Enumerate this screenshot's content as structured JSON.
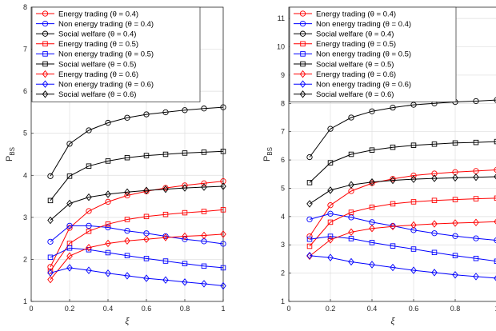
{
  "chart_data": [
    {
      "type": "line",
      "xlabel": "ξ",
      "ylabel": "P",
      "ylabel_sub": "BS",
      "xlim": [
        0,
        1
      ],
      "ylim": [
        1,
        8
      ],
      "xticks": [
        "0",
        "0.2",
        "0.4",
        "0.6",
        "0.8",
        "1"
      ],
      "yticks": [
        "1",
        "2",
        "3",
        "4",
        "5",
        "6",
        "7",
        "8"
      ],
      "grid": true,
      "legend_position": "top-left",
      "x": [
        0.1,
        0.2,
        0.3,
        0.4,
        0.5,
        0.6,
        0.7,
        0.8,
        0.9,
        1.0
      ],
      "series": [
        {
          "name": "Energy trading (θ = 0.4)",
          "color": "#ff0000",
          "marker": "circle",
          "values": [
            1.82,
            2.75,
            3.15,
            3.37,
            3.52,
            3.62,
            3.7,
            3.76,
            3.81,
            3.86
          ]
        },
        {
          "name": "Non energy trading (θ = 0.4)",
          "color": "#0000ff",
          "marker": "circle",
          "values": [
            2.42,
            2.8,
            2.8,
            2.76,
            2.68,
            2.62,
            2.55,
            2.48,
            2.43,
            2.37
          ]
        },
        {
          "name": "Social welfare (θ = 0.4)",
          "color": "#000000",
          "marker": "circle",
          "values": [
            3.98,
            4.75,
            5.07,
            5.25,
            5.37,
            5.45,
            5.5,
            5.55,
            5.59,
            5.62
          ]
        },
        {
          "name": "Energy trading (θ = 0.5)",
          "color": "#ff0000",
          "marker": "square",
          "values": [
            1.72,
            2.38,
            2.67,
            2.84,
            2.95,
            3.02,
            3.07,
            3.11,
            3.14,
            3.18
          ]
        },
        {
          "name": "Non energy trading (θ = 0.5)",
          "color": "#0000ff",
          "marker": "square",
          "values": [
            2.05,
            2.27,
            2.23,
            2.16,
            2.09,
            2.02,
            1.96,
            1.9,
            1.84,
            1.8
          ]
        },
        {
          "name": "Social welfare (θ = 0.5)",
          "color": "#000000",
          "marker": "square",
          "values": [
            3.4,
            3.98,
            4.22,
            4.34,
            4.42,
            4.47,
            4.5,
            4.53,
            4.55,
            4.57
          ]
        },
        {
          "name": "Energy trading (θ = 0.6)",
          "color": "#ff0000",
          "marker": "diamond",
          "values": [
            1.52,
            2.08,
            2.28,
            2.38,
            2.44,
            2.48,
            2.52,
            2.55,
            2.57,
            2.6
          ]
        },
        {
          "name": "Non energy trading (θ = 0.6)",
          "color": "#0000ff",
          "marker": "diamond",
          "values": [
            1.68,
            1.8,
            1.74,
            1.67,
            1.61,
            1.55,
            1.51,
            1.46,
            1.42,
            1.37
          ]
        },
        {
          "name": "Social welfare (θ = 0.6)",
          "color": "#000000",
          "marker": "diamond",
          "values": [
            2.93,
            3.33,
            3.48,
            3.55,
            3.6,
            3.64,
            3.67,
            3.7,
            3.72,
            3.74
          ]
        }
      ]
    },
    {
      "type": "line",
      "xlabel": "ξ",
      "ylabel": "P",
      "ylabel_sub": "BS",
      "xlim": [
        0,
        1
      ],
      "ylim": [
        1,
        11.4
      ],
      "xticks": [
        "0",
        "0.2",
        "0.4",
        "0.6",
        "0.8",
        "1"
      ],
      "yticks": [
        "1",
        "2",
        "3",
        "4",
        "5",
        "6",
        "7",
        "8",
        "9",
        "10",
        "11"
      ],
      "grid": true,
      "legend_position": "top-left",
      "x": [
        0.1,
        0.2,
        0.3,
        0.4,
        0.5,
        0.6,
        0.7,
        0.8,
        0.9,
        1.0
      ],
      "series": [
        {
          "name": "Energy trading (θ = 0.4)",
          "color": "#ff0000",
          "marker": "circle",
          "values": [
            3.3,
            4.4,
            4.9,
            5.18,
            5.33,
            5.45,
            5.52,
            5.57,
            5.61,
            5.65
          ]
        },
        {
          "name": "Non energy trading (θ = 0.4)",
          "color": "#0000ff",
          "marker": "circle",
          "values": [
            3.9,
            4.1,
            3.97,
            3.8,
            3.67,
            3.52,
            3.41,
            3.31,
            3.23,
            3.16
          ]
        },
        {
          "name": "Social welfare (θ = 0.4)",
          "color": "#000000",
          "marker": "circle",
          "values": [
            6.1,
            7.1,
            7.5,
            7.72,
            7.85,
            7.95,
            8.0,
            8.05,
            8.08,
            8.12
          ]
        },
        {
          "name": "Energy trading (θ = 0.5)",
          "color": "#ff0000",
          "marker": "square",
          "values": [
            2.95,
            3.8,
            4.15,
            4.33,
            4.45,
            4.52,
            4.57,
            4.6,
            4.63,
            4.65
          ]
        },
        {
          "name": "Non energy trading (θ = 0.5)",
          "color": "#0000ff",
          "marker": "square",
          "values": [
            3.2,
            3.3,
            3.22,
            3.08,
            2.96,
            2.85,
            2.73,
            2.62,
            2.52,
            2.42
          ]
        },
        {
          "name": "Social welfare (θ = 0.5)",
          "color": "#000000",
          "marker": "square",
          "values": [
            5.2,
            5.9,
            6.2,
            6.35,
            6.45,
            6.52,
            6.56,
            6.6,
            6.62,
            6.65
          ]
        },
        {
          "name": "Energy trading (θ = 0.6)",
          "color": "#ff0000",
          "marker": "diamond",
          "values": [
            2.6,
            3.18,
            3.45,
            3.58,
            3.65,
            3.7,
            3.74,
            3.77,
            3.79,
            3.82
          ]
        },
        {
          "name": "Non energy trading (θ = 0.6)",
          "color": "#0000ff",
          "marker": "diamond",
          "values": [
            2.62,
            2.55,
            2.4,
            2.3,
            2.2,
            2.1,
            2.02,
            1.94,
            1.88,
            1.82
          ]
        },
        {
          "name": "Social welfare (θ = 0.6)",
          "color": "#000000",
          "marker": "diamond",
          "values": [
            4.45,
            4.93,
            5.12,
            5.22,
            5.28,
            5.32,
            5.35,
            5.37,
            5.39,
            5.41
          ]
        }
      ]
    }
  ]
}
